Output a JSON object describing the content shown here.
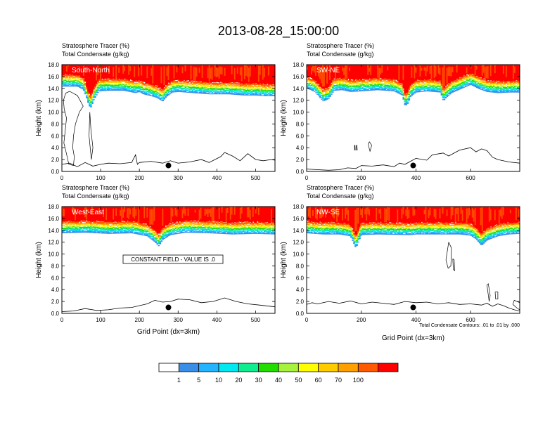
{
  "title": "2013-08-28_15:00:00",
  "field_label_line1": "Stratosphere Tracer   (%)",
  "field_label_line2": "Total Condensate   (g/kg)",
  "ylabel": "Height (km)",
  "xlabel": "Grid Point (dx=3km)",
  "constant_field_note": "CONSTANT FIELD - VALUE IS .0",
  "contour_note": "Total Condensate Contours: .01 to .01 by .000",
  "colorbar": {
    "levels": [
      "1",
      "5",
      "10",
      "20",
      "30",
      "40",
      "50",
      "60",
      "70",
      "100"
    ],
    "colors": [
      "#ffffff",
      "#3a8ee8",
      "#22b4ff",
      "#00e8f0",
      "#10ec90",
      "#22dd00",
      "#a6f23c",
      "#ffff00",
      "#ffcc00",
      "#ff9f00",
      "#ff5a00",
      "#ff0000"
    ]
  },
  "chart_data": [
    {
      "type": "heatmap",
      "panel_label": "South-North",
      "xlim": [
        0,
        550
      ],
      "xticks": [
        "0",
        "100",
        "200",
        "300",
        "400",
        "500"
      ],
      "xtick_values": [
        0,
        100,
        200,
        300,
        400,
        500
      ],
      "ylim": [
        0,
        18
      ],
      "yticks": [
        "0.0",
        "2.0",
        "4.0",
        "6.0",
        "8.0",
        "10.0",
        "12.0",
        "14.0",
        "16.0",
        "18.0"
      ],
      "yvalues": [
        0,
        2,
        4,
        6,
        8,
        10,
        12,
        14,
        16,
        18
      ],
      "marker_x": 275,
      "tropopause_x": [
        0,
        40,
        55,
        62,
        70,
        75,
        82,
        95,
        120,
        160,
        190,
        200,
        210,
        230,
        245,
        260,
        270,
        285,
        300,
        340,
        380,
        430,
        470,
        500,
        520,
        550
      ],
      "tropopause_km": [
        14.3,
        14.3,
        13.8,
        12.7,
        11.0,
        10.8,
        12.0,
        13.5,
        13.6,
        13.6,
        13.2,
        13.4,
        13.0,
        12.7,
        12.4,
        11.8,
        12.6,
        13.3,
        13.4,
        13.2,
        13.0,
        13.0,
        12.8,
        12.8,
        12.7,
        12.7
      ],
      "terrain_x": [
        0,
        20,
        40,
        60,
        80,
        100,
        120,
        150,
        180,
        190,
        195,
        200,
        230,
        260,
        280,
        300,
        330,
        360,
        380,
        410,
        420,
        440,
        460,
        480,
        500,
        520,
        540,
        550
      ],
      "terrain_km": [
        1.2,
        1.4,
        0.8,
        1.5,
        0.9,
        1.2,
        1.4,
        1.3,
        1.5,
        2.8,
        1.2,
        1.5,
        1.7,
        1.4,
        1.8,
        1.4,
        1.6,
        2.0,
        1.5,
        2.5,
        3.2,
        2.6,
        1.8,
        3.0,
        2.0,
        1.8,
        2.0,
        1.9
      ],
      "contours": [
        {
          "x": [
            5,
            8,
            12,
            6,
            4,
            10,
            20,
            40,
            55,
            45,
            35,
            30,
            28,
            32,
            30,
            18,
            10,
            5
          ],
          "y": [
            4.8,
            6.5,
            9.0,
            10.5,
            12.0,
            13.2,
            13.5,
            12.8,
            11.0,
            10.0,
            8.0,
            6.0,
            4.0,
            2.5,
            1.0,
            1.2,
            3.5,
            4.8
          ]
        },
        {
          "x": [
            72,
            75,
            80,
            76,
            70,
            72
          ],
          "y": [
            10.0,
            7.0,
            4.0,
            2.0,
            6.0,
            10.0
          ]
        }
      ]
    },
    {
      "type": "heatmap",
      "panel_label": "SW-NE",
      "xlim": [
        0,
        780
      ],
      "xticks": [
        "0",
        "200",
        "400",
        "600"
      ],
      "xtick_values": [
        0,
        200,
        400,
        600
      ],
      "ylim": [
        0,
        18
      ],
      "yticks": [
        "0.0",
        "2.0",
        "4.0",
        "6.0",
        "8.0",
        "10.0",
        "12.0",
        "14.0",
        "16.0",
        "18.0"
      ],
      "yvalues": [
        0,
        2,
        4,
        6,
        8,
        10,
        12,
        14,
        16,
        18
      ],
      "marker_x": 390,
      "tropopause_x": [
        0,
        30,
        60,
        80,
        100,
        130,
        160,
        200,
        260,
        320,
        350,
        360,
        370,
        380,
        400,
        440,
        490,
        500,
        510,
        530,
        560,
        600,
        630,
        660,
        700,
        740,
        780
      ],
      "tropopause_km": [
        14.0,
        13.4,
        11.8,
        12.2,
        13.6,
        13.7,
        13.4,
        13.5,
        13.7,
        13.5,
        12.8,
        11.0,
        11.4,
        12.6,
        13.3,
        13.5,
        13.3,
        11.8,
        12.4,
        13.2,
        13.8,
        14.6,
        13.9,
        13.4,
        13.2,
        13.3,
        13.3
      ],
      "terrain_x": [
        0,
        40,
        80,
        120,
        150,
        180,
        200,
        240,
        280,
        320,
        340,
        360,
        400,
        440,
        460,
        500,
        520,
        560,
        600,
        620,
        640,
        660,
        680,
        700,
        740,
        780
      ],
      "terrain_km": [
        0.4,
        0.3,
        0.2,
        0.3,
        0.6,
        0.5,
        1.0,
        0.9,
        1.1,
        0.8,
        1.4,
        1.2,
        2.2,
        1.9,
        2.8,
        3.1,
        2.6,
        3.6,
        4.0,
        3.3,
        3.8,
        3.5,
        2.4,
        2.0,
        1.6,
        1.4
      ],
      "contours": [
        {
          "x": [
            175,
            176,
            178,
            177,
            175
          ],
          "y": [
            4.4,
            3.6,
            3.6,
            4.4,
            4.4
          ]
        },
        {
          "x": [
            182,
            183,
            185,
            184,
            182
          ],
          "y": [
            4.4,
            3.6,
            3.6,
            4.4,
            4.4
          ]
        },
        {
          "x": [
            225,
            232,
            238,
            230,
            225
          ],
          "y": [
            4.6,
            3.4,
            4.4,
            5.0,
            4.6
          ]
        }
      ]
    },
    {
      "type": "heatmap",
      "panel_label": "West-East",
      "xlim": [
        0,
        550
      ],
      "xticks": [
        "0",
        "100",
        "200",
        "300",
        "400",
        "500"
      ],
      "xtick_values": [
        0,
        100,
        200,
        300,
        400,
        500
      ],
      "ylim": [
        0,
        18
      ],
      "yticks": [
        "0.0",
        "2.0",
        "4.0",
        "6.0",
        "8.0",
        "10.0",
        "12.0",
        "14.0",
        "16.0",
        "18.0"
      ],
      "yvalues": [
        0,
        2,
        4,
        6,
        8,
        10,
        12,
        14,
        16,
        18
      ],
      "marker_x": 275,
      "tropopause_x": [
        0,
        60,
        120,
        180,
        220,
        240,
        250,
        260,
        280,
        320,
        380,
        440,
        500,
        550
      ],
      "tropopause_km": [
        13.5,
        13.6,
        13.4,
        13.5,
        13.0,
        12.0,
        11.3,
        12.4,
        13.2,
        13.6,
        13.5,
        13.3,
        13.4,
        13.3
      ],
      "terrain_x": [
        0,
        30,
        60,
        90,
        120,
        150,
        180,
        200,
        220,
        240,
        260,
        280,
        300,
        330,
        360,
        390,
        420,
        450,
        480,
        510,
        550
      ],
      "terrain_km": [
        0.3,
        0.4,
        0.8,
        0.5,
        0.6,
        0.9,
        1.0,
        1.3,
        1.6,
        2.2,
        1.9,
        2.0,
        2.4,
        2.3,
        1.8,
        2.0,
        2.6,
        2.0,
        1.6,
        1.4,
        1.1
      ],
      "contours": []
    },
    {
      "type": "heatmap",
      "panel_label": "NW-SE",
      "xlim": [
        0,
        780
      ],
      "xticks": [
        "0",
        "200",
        "400",
        "600"
      ],
      "xtick_values": [
        0,
        200,
        400,
        600
      ],
      "ylim": [
        0,
        18
      ],
      "yticks": [
        "0.0",
        "2.0",
        "4.0",
        "6.0",
        "8.0",
        "10.0",
        "12.0",
        "14.0",
        "16.0",
        "18.0"
      ],
      "yvalues": [
        0,
        2,
        4,
        6,
        8,
        10,
        12,
        14,
        16,
        18
      ],
      "marker_x": 390,
      "tropopause_x": [
        0,
        60,
        120,
        160,
        180,
        200,
        260,
        360,
        380,
        400,
        440,
        500,
        560,
        600,
        620,
        640,
        660,
        700,
        740,
        780
      ],
      "tropopause_km": [
        13.5,
        13.3,
        13.3,
        13.0,
        11.0,
        13.2,
        13.3,
        13.2,
        13.2,
        13.3,
        13.3,
        13.3,
        13.3,
        13.1,
        12.5,
        11.4,
        12.3,
        13.0,
        13.3,
        13.4
      ],
      "terrain_x": [
        0,
        20,
        40,
        80,
        120,
        160,
        200,
        240,
        280,
        320,
        360,
        400,
        440,
        480,
        520,
        560,
        600,
        640,
        660,
        680,
        700,
        720,
        740,
        760,
        780
      ],
      "terrain_km": [
        1.5,
        1.8,
        1.6,
        2.0,
        1.7,
        2.1,
        1.6,
        1.9,
        1.7,
        1.5,
        2.0,
        1.8,
        1.9,
        1.6,
        1.8,
        1.5,
        1.6,
        1.4,
        1.7,
        1.2,
        1.6,
        1.3,
        0.9,
        0.6,
        0.4
      ],
      "contours": [
        {
          "x": [
            520,
            510,
            518,
            528,
            530,
            520
          ],
          "y": [
            12.0,
            9.0,
            7.6,
            8.0,
            11.0,
            12.0
          ]
        },
        {
          "x": [
            535,
            540,
            542,
            537,
            535
          ],
          "y": [
            9.2,
            9.0,
            7.2,
            7.4,
            9.2
          ]
        },
        {
          "x": [
            660,
            665,
            672,
            668,
            660
          ],
          "y": [
            4.8,
            5.0,
            3.0,
            2.0,
            4.8
          ]
        },
        {
          "x": [
            690,
            700,
            700,
            692,
            690
          ],
          "y": [
            3.6,
            3.6,
            2.4,
            2.4,
            3.6
          ]
        },
        {
          "x": [
            755,
            760,
            780,
            780,
            770,
            755
          ],
          "y": [
            1.5,
            2.2,
            1.8,
            0.6,
            0.9,
            1.5
          ]
        }
      ]
    }
  ]
}
